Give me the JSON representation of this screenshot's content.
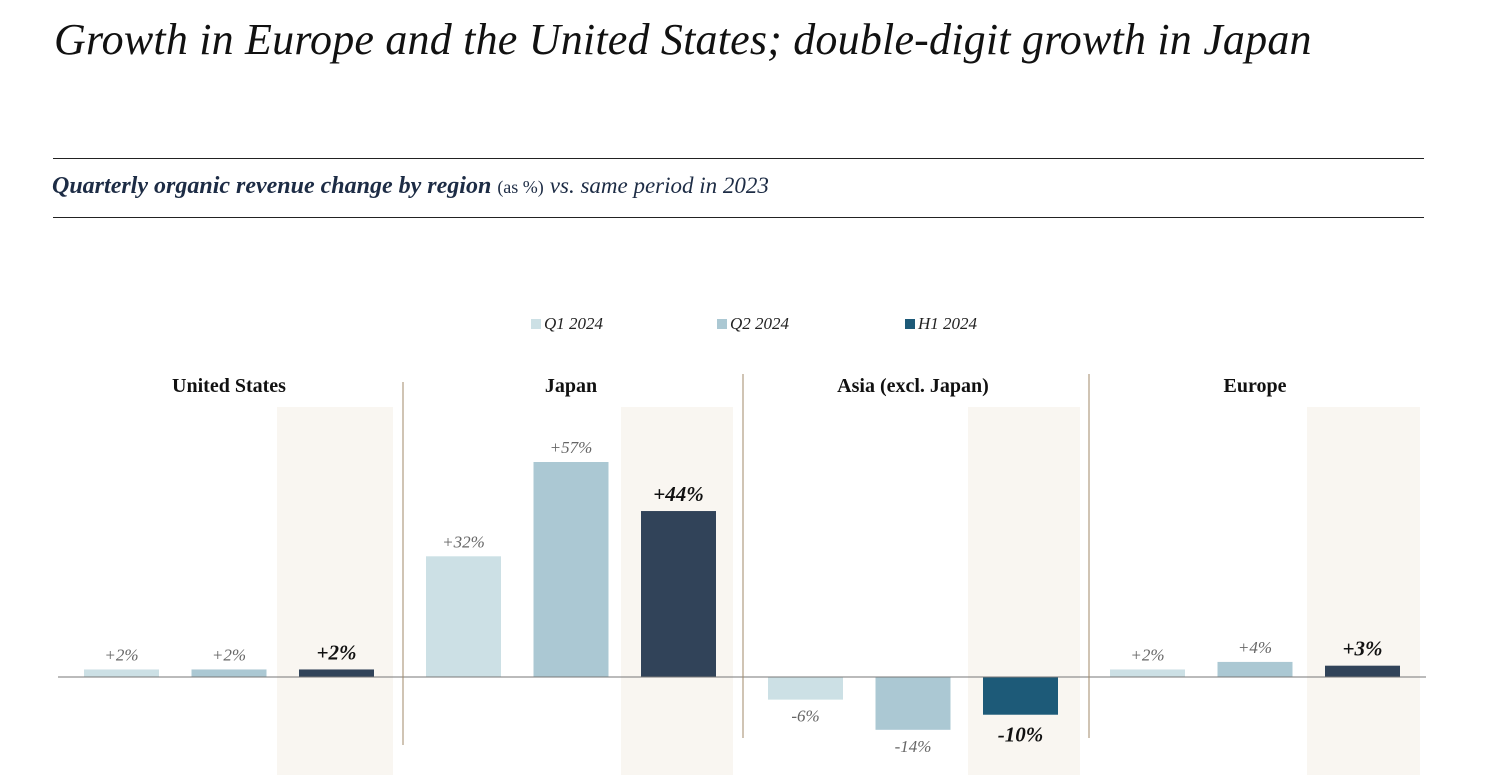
{
  "header": {
    "title": "Growth in Europe and the United States; double-digit growth in Japan",
    "subtitle_strong": "Quarterly organic revenue change by region",
    "subtitle_unit": "(as %)",
    "subtitle_period": "vs. same period in 2023"
  },
  "colors": {
    "q1": "#cce0e5",
    "q2": "#abc8d3",
    "h1": "#314359",
    "h1_asia": "#1d5a78",
    "highlight": "#f9f6f1",
    "divider": "#a08a6a",
    "baseline": "#777777"
  },
  "chart_data": {
    "type": "bar",
    "series": [
      {
        "name": "Q1 2024"
      },
      {
        "name": "Q2 2024"
      },
      {
        "name": "H1 2024"
      }
    ],
    "groups": [
      {
        "name": "United States",
        "values": [
          2,
          2,
          2
        ],
        "labels": [
          "+2%",
          "+2%",
          "+2%"
        ]
      },
      {
        "name": "Japan",
        "values": [
          32,
          57,
          44
        ],
        "labels": [
          "+32%",
          "+57%",
          "+44%"
        ]
      },
      {
        "name": "Asia (excl. Japan)",
        "values": [
          -6,
          -14,
          -10
        ],
        "labels": [
          "-6%",
          "-14%",
          "-10%"
        ]
      },
      {
        "name": "Europe",
        "values": [
          2,
          4,
          3
        ],
        "labels": [
          "+2%",
          "+4%",
          "+3%"
        ]
      }
    ],
    "ylabel": "",
    "ylim": [
      -14,
      57
    ],
    "legend": "top-center",
    "grid": false
  }
}
